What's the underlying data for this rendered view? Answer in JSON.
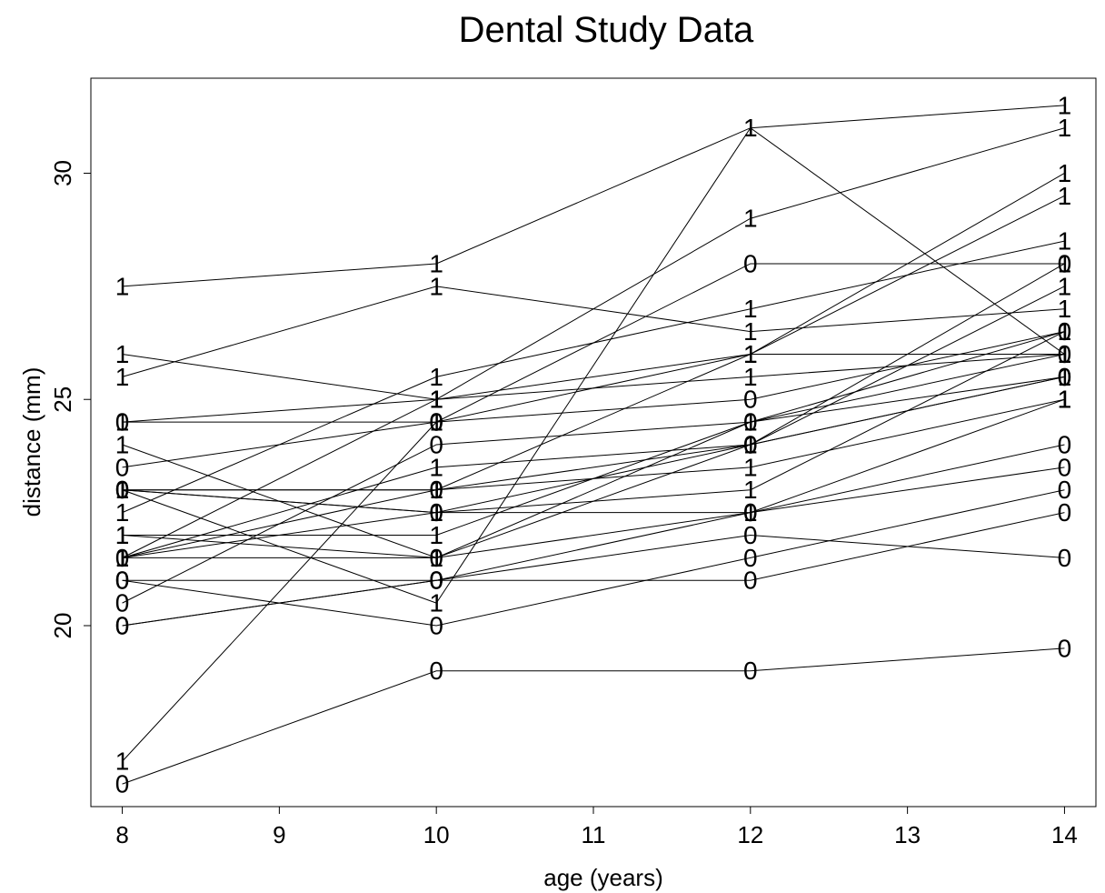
{
  "chart_data": {
    "type": "line",
    "title": "Dental Study Data",
    "xlabel": "age (years)",
    "ylabel": "distance (mm)",
    "xlim": [
      7.8,
      14.2
    ],
    "ylim": [
      16,
      32.1
    ],
    "xticks": [
      8,
      9,
      10,
      11,
      12,
      13,
      14
    ],
    "yticks": [
      20,
      25,
      30
    ],
    "grid": false,
    "legend": "none",
    "x": [
      8,
      10,
      12,
      14
    ],
    "series": [
      {
        "marker": "1",
        "values": [
          27.5,
          28.0,
          31.0,
          31.5
        ]
      },
      {
        "marker": "1",
        "values": [
          26.0,
          25.0,
          29.0,
          31.0
        ]
      },
      {
        "marker": "1",
        "values": [
          23.0,
          20.5,
          31.0,
          26.0
        ]
      },
      {
        "marker": "1",
        "values": [
          17.0,
          24.5,
          26.0,
          29.5
        ]
      },
      {
        "marker": "1",
        "values": [
          25.5,
          27.5,
          26.5,
          27.0
        ]
      },
      {
        "marker": "1",
        "values": [
          22.5,
          25.5,
          27.0,
          28.5
        ]
      },
      {
        "marker": "1",
        "values": [
          22.0,
          22.0,
          24.5,
          26.5
        ]
      },
      {
        "marker": "1",
        "values": [
          24.0,
          21.5,
          24.5,
          25.5
        ]
      },
      {
        "marker": "1",
        "values": [
          23.0,
          22.5,
          24.0,
          27.5
        ]
      },
      {
        "marker": "1",
        "values": [
          21.5,
          23.5,
          24.0,
          28.0
        ]
      },
      {
        "marker": "1",
        "values": [
          21.5,
          22.5,
          23.0,
          26.5
        ]
      },
      {
        "marker": "1",
        "values": [
          23.0,
          23.0,
          23.5,
          25.0
        ]
      },
      {
        "marker": "1",
        "values": [
          22.0,
          21.5,
          22.5,
          25.0
        ]
      },
      {
        "marker": "1",
        "values": [
          21.5,
          25.0,
          25.5,
          26.0
        ]
      },
      {
        "marker": "1",
        "values": [
          24.5,
          25.0,
          26.0,
          30.0
        ]
      },
      {
        "marker": "1",
        "values": [
          21.5,
          23.0,
          26.0,
          26.0
        ]
      },
      {
        "marker": "0",
        "values": [
          24.5,
          24.5,
          28.0,
          28.0
        ]
      },
      {
        "marker": "0",
        "values": [
          23.5,
          24.5,
          25.0,
          26.5
        ]
      },
      {
        "marker": "0",
        "values": [
          21.0,
          21.0,
          22.0,
          21.5
        ]
      },
      {
        "marker": "0",
        "values": [
          20.5,
          24.0,
          24.5,
          26.0
        ]
      },
      {
        "marker": "0",
        "values": [
          23.0,
          23.0,
          24.0,
          25.5
        ]
      },
      {
        "marker": "0",
        "values": [
          21.0,
          20.0,
          21.5,
          23.0
        ]
      },
      {
        "marker": "0",
        "values": [
          20.0,
          21.0,
          21.0,
          22.5
        ]
      },
      {
        "marker": "0",
        "values": [
          21.5,
          21.5,
          24.0,
          25.5
        ]
      },
      {
        "marker": "0",
        "values": [
          16.5,
          19.0,
          19.0,
          19.5
        ]
      },
      {
        "marker": "0",
        "values": [
          20.0,
          21.0,
          22.5,
          23.5
        ]
      },
      {
        "marker": "0",
        "values": [
          23.0,
          22.5,
          22.5,
          24.0
        ]
      }
    ]
  }
}
